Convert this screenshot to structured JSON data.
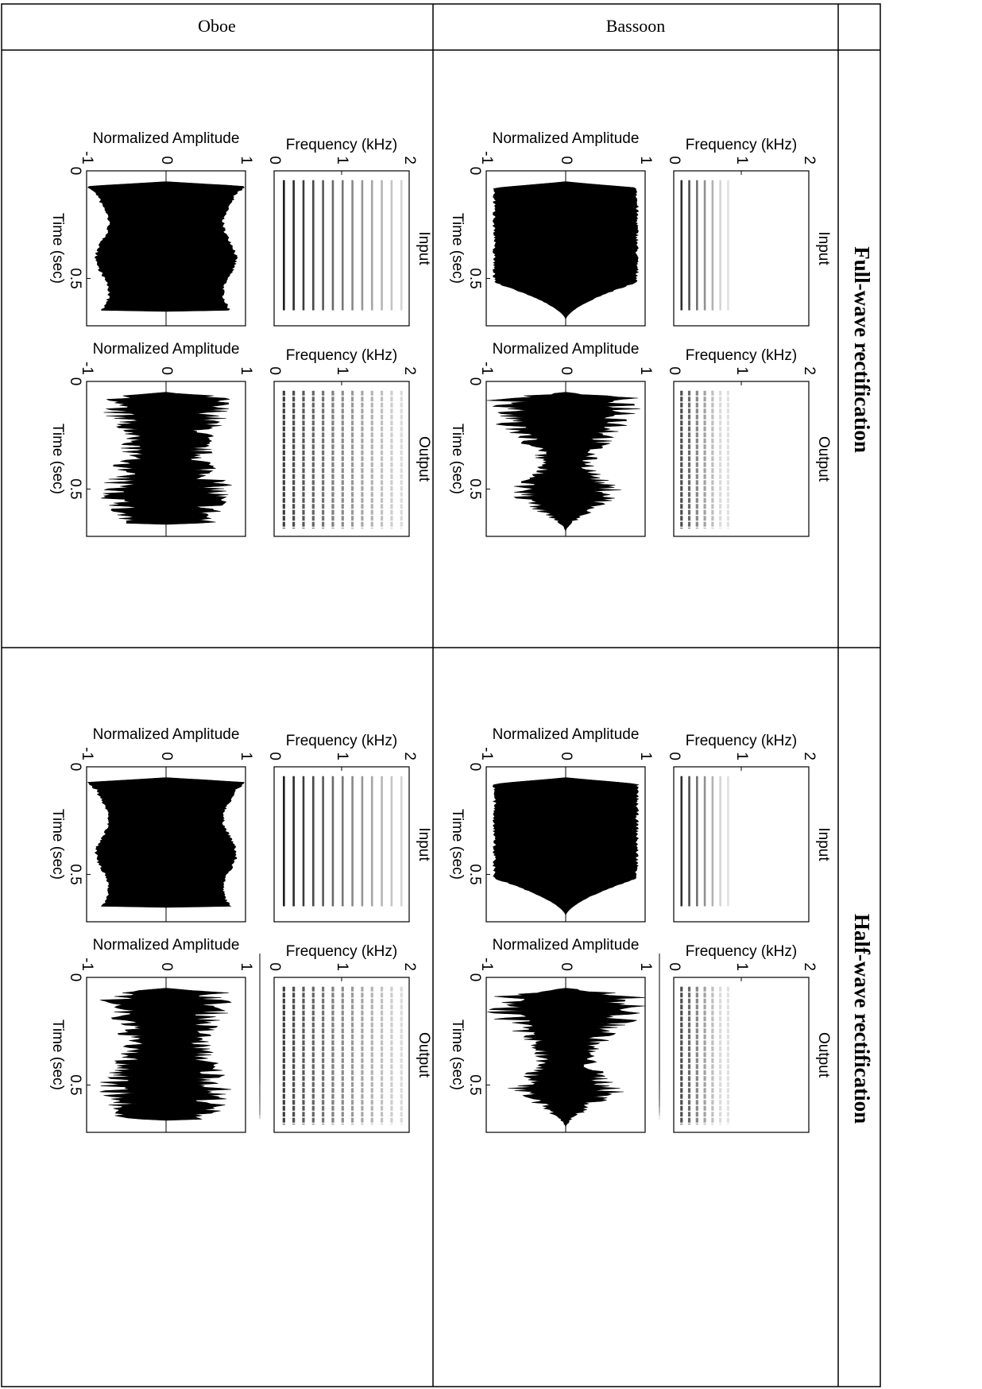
{
  "columns": [
    "Oboe",
    "Bassoon"
  ],
  "rows": [
    {
      "label": "Full-wave rectification"
    },
    {
      "label": "Half-wave rectification"
    }
  ],
  "panels": [
    "Input",
    "Output"
  ],
  "axes": {
    "spectrogram": {
      "ylabel": "Frequency (kHz)",
      "ylim": [
        0,
        2
      ],
      "yticks": [
        0,
        1,
        2
      ]
    },
    "waveform": {
      "ylabel": "Normalized Amplitude",
      "xlabel": "Time (sec)",
      "ylim": [
        -1,
        1
      ],
      "yticks": [
        -1,
        0,
        1
      ],
      "xlim": [
        0,
        0.72
      ],
      "xticks": [
        0,
        0.5
      ]
    }
  }
}
